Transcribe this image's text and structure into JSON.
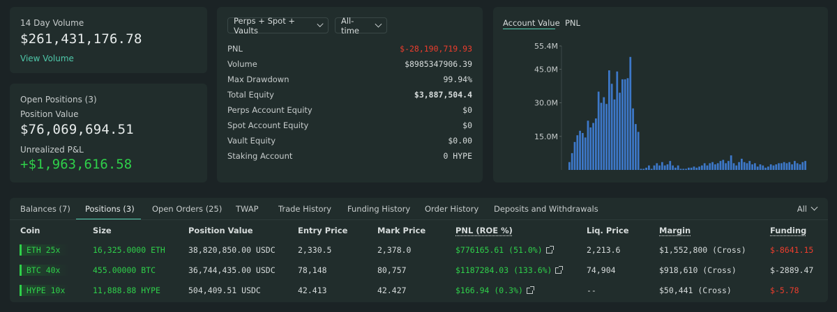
{
  "volume_card": {
    "label": "14 Day Volume",
    "value": "$261,431,176.78",
    "link": "View Volume"
  },
  "positions_card": {
    "title": "Open Positions (3)",
    "position_value_label": "Position Value",
    "position_value": "$76,069,694.51",
    "upnl_label": "Unrealized P&L",
    "upnl_value": "+$1,963,616.58"
  },
  "stats": {
    "filter_scope": "Perps + Spot + Vaults",
    "filter_time": "All-time",
    "rows": [
      {
        "label": "PNL",
        "value": "$-28,190,719.93"
      },
      {
        "label": "Volume",
        "value": "$8985347906.39"
      },
      {
        "label": "Max Drawdown",
        "value": "99.94%"
      },
      {
        "label": "Total Equity",
        "value": "$3,887,504.4"
      },
      {
        "label": "Perps Account Equity",
        "value": "$0"
      },
      {
        "label": "Spot Account Equity",
        "value": "$0"
      },
      {
        "label": "Vault Equity",
        "value": "$0.00"
      },
      {
        "label": "Staking Account",
        "value": "0 HYPE"
      }
    ],
    "colors": {
      "negative": "#ee3d2d",
      "positive": "#2fd04a",
      "accent": "#56d2b5"
    }
  },
  "chart_tabs": {
    "account_value": "Account Value",
    "pnl": "PNL"
  },
  "chart_data": {
    "type": "bar",
    "title": "",
    "xlabel": "",
    "ylabel": "",
    "ylim": [
      0,
      55.4
    ],
    "yticks": [
      "55.4M",
      "45.0M",
      "30.0M",
      "15.0M"
    ],
    "ytick_values": [
      55.4,
      45.0,
      30.0,
      15.0
    ],
    "color": "#3d78c9",
    "values": [
      3.5,
      7.5,
      12.5,
      15.5,
      17.5,
      16.5,
      14.5,
      22.0,
      19.0,
      21.0,
      23.0,
      35.0,
      30.0,
      32.5,
      29.5,
      44.5,
      38.5,
      31.5,
      44.0,
      34.5,
      40.5,
      40.5,
      41.0,
      50.5,
      27.5,
      20.5,
      17.0,
      0.5,
      0.5,
      1.0,
      2.0,
      0.5,
      2.0,
      3.0,
      2.0,
      3.5,
      2.0,
      2.5,
      4.0,
      2.0,
      1.0,
      2.0,
      0.5,
      0.5,
      0.5,
      1.0,
      1.0,
      1.5,
      1.0,
      1.5,
      2.0,
      3.0,
      2.0,
      3.0,
      3.5,
      2.5,
      3.0,
      4.0,
      4.5,
      3.0,
      4.0,
      6.5,
      3.0,
      2.0,
      3.5,
      5.0,
      3.5,
      3.0,
      4.0,
      2.5,
      3.0,
      1.5,
      2.5,
      2.0,
      1.0,
      1.5,
      2.5,
      2.0,
      2.5,
      3.0,
      3.0,
      3.5,
      3.0,
      3.5,
      2.5,
      4.0,
      3.0,
      2.5,
      3.5,
      4.0
    ]
  },
  "table": {
    "tabs": [
      "Balances (7)",
      "Positions (3)",
      "Open Orders (25)",
      "TWAP",
      "Trade History",
      "Funding History",
      "Order History",
      "Deposits and Withdrawals"
    ],
    "filter": "All",
    "headers": [
      "Coin",
      "Size",
      "Position Value",
      "Entry Price",
      "Mark Price",
      "PNL (ROE %)",
      "Liq. Price",
      "Margin",
      "Funding"
    ],
    "rows": [
      {
        "coin": "ETH 25x",
        "size": "16,325.0000 ETH",
        "value": "38,820,850.00 USDC",
        "entry": "2,330.5",
        "mark": "2,378.0",
        "pnl": "$776165.61 (51.0%)",
        "liq": "2,213.6",
        "margin": "$1,552,800 (Cross)",
        "funding": "$-8641.15"
      },
      {
        "coin": "BTC 40x",
        "size": "455.00000 BTC",
        "value": "36,744,435.00 USDC",
        "entry": "78,148",
        "mark": "80,757",
        "pnl": "$1187284.03 (133.6%)",
        "liq": "74,904",
        "margin": "$918,610 (Cross)",
        "funding": "$-2889.47"
      },
      {
        "coin": "HYPE 10x",
        "size": "11,888.88 HYPE",
        "value": "504,409.51 USDC",
        "entry": "42.413",
        "mark": "42.427",
        "pnl": "$166.94 (0.3%)",
        "liq": "--",
        "margin": "$50,441 (Cross)",
        "funding": "$-5.78"
      }
    ]
  }
}
